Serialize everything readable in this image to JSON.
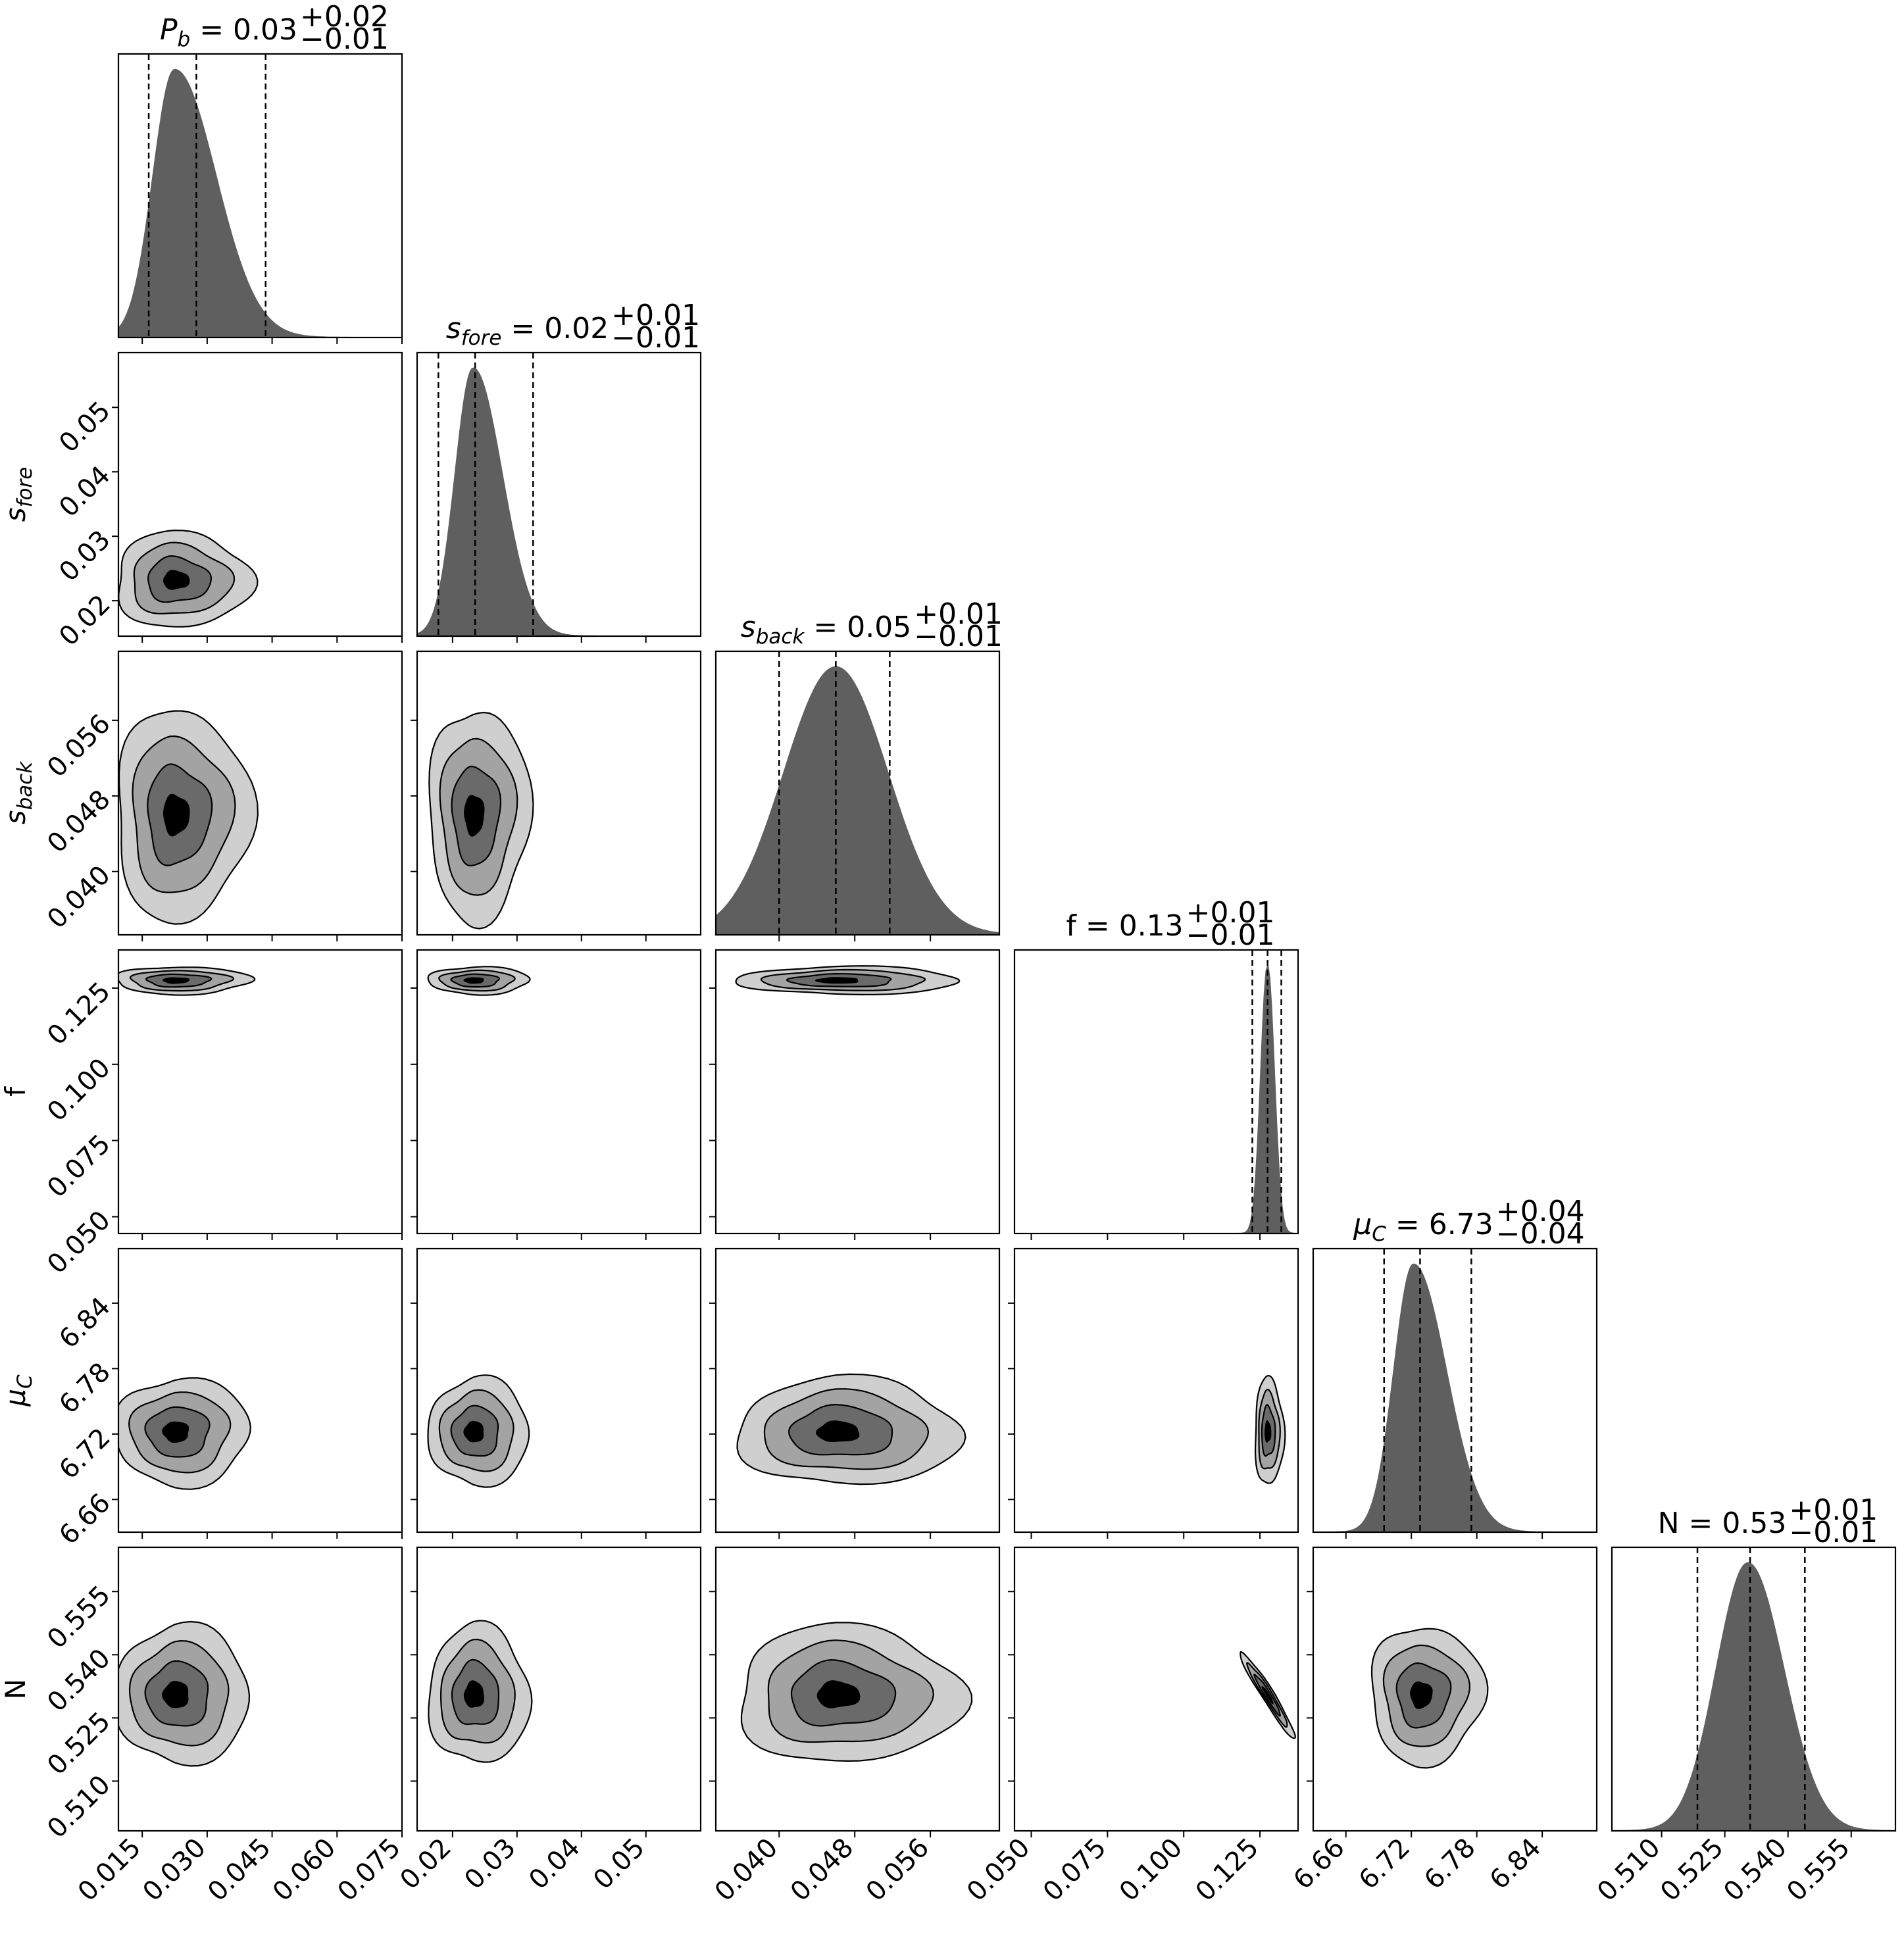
{
  "chart_data": {
    "type": "corner",
    "parameters": [
      {
        "key": "Pb",
        "label": "P",
        "label_sub": "b",
        "label_italic": true,
        "median": 0.03,
        "quantiles": [
          0.0165,
          0.0275,
          0.0435
        ],
        "plus": "+0.02",
        "minus": "−0.01",
        "value_text": "0.03",
        "range": [
          0.0095,
          0.075
        ],
        "ticks": [
          0.015,
          0.03,
          0.045,
          0.06,
          0.075
        ],
        "tick_labels": [
          "0.015",
          "0.030",
          "0.045",
          "0.060",
          "0.075"
        ],
        "peak": 0.0225,
        "sigma_left": 0.005,
        "sigma_right": 0.0095
      },
      {
        "key": "sfore",
        "label": "s",
        "label_sub": "fore",
        "label_italic": true,
        "median": 0.02,
        "quantiles": [
          0.0178,
          0.0235,
          0.0325
        ],
        "plus": "+0.01",
        "minus": "−0.01",
        "value_text": "0.02",
        "range": [
          0.0145,
          0.0585
        ],
        "ticks": [
          0.02,
          0.03,
          0.04,
          0.05
        ],
        "tick_labels": [
          "0.02",
          "0.03",
          "0.04",
          "0.05"
        ],
        "peak": 0.0232,
        "sigma_left": 0.0028,
        "sigma_right": 0.0045
      },
      {
        "key": "sback",
        "label": "s",
        "label_sub": "back",
        "label_italic": true,
        "median": 0.05,
        "quantiles": [
          0.04,
          0.046,
          0.0517
        ],
        "plus": "+0.01",
        "minus": "−0.01",
        "value_text": "0.05",
        "range": [
          0.0333,
          0.0633
        ],
        "ticks": [
          0.04,
          0.048,
          0.056
        ],
        "tick_labels": [
          "0.040",
          "0.048",
          "0.056"
        ],
        "peak": 0.046,
        "sigma_left": 0.0055,
        "sigma_right": 0.0055
      },
      {
        "key": "f",
        "label": "f",
        "label_sub": "",
        "label_italic": false,
        "median": 0.13,
        "quantiles": [
          0.1225,
          0.1275,
          0.132
        ],
        "plus": "+0.01",
        "minus": "−0.01",
        "value_text": "0.13",
        "range": [
          0.0445,
          0.1375
        ],
        "ticks": [
          0.05,
          0.075,
          0.1,
          0.125
        ],
        "tick_labels": [
          "0.050",
          "0.075",
          "0.100",
          "0.125"
        ],
        "peak": 0.1275,
        "sigma_left": 0.0022,
        "sigma_right": 0.0022
      },
      {
        "key": "muC",
        "label": "μ",
        "label_sub": "C",
        "label_italic": true,
        "median": 6.73,
        "quantiles": [
          6.695,
          6.728,
          6.775
        ],
        "plus": "+0.04",
        "minus": "−0.04",
        "value_text": "6.73",
        "range": [
          6.63,
          6.89
        ],
        "ticks": [
          6.66,
          6.72,
          6.78,
          6.84
        ],
        "tick_labels": [
          "6.66",
          "6.72",
          "6.78",
          "6.84"
        ],
        "peak": 6.722,
        "sigma_left": 0.018,
        "sigma_right": 0.03
      },
      {
        "key": "N",
        "label": "N",
        "label_sub": "",
        "label_italic": false,
        "median": 0.53,
        "quantiles": [
          0.5185,
          0.531,
          0.544
        ],
        "plus": "+0.01",
        "minus": "−0.01",
        "value_text": "0.53",
        "range": [
          0.4982,
          0.5655
        ],
        "ticks": [
          0.51,
          0.525,
          0.54,
          0.555
        ],
        "tick_labels": [
          "0.510",
          "0.525",
          "0.540",
          "0.555"
        ],
        "peak": 0.5305,
        "sigma_left": 0.0075,
        "sigma_right": 0.0085
      }
    ],
    "contour_levels": 4,
    "contour_colors": [
      "#cfcfcf",
      "#a3a3a3",
      "#6a6a6a",
      "#000000"
    ],
    "histogram_color": "#5f5f5f",
    "grid": false
  }
}
